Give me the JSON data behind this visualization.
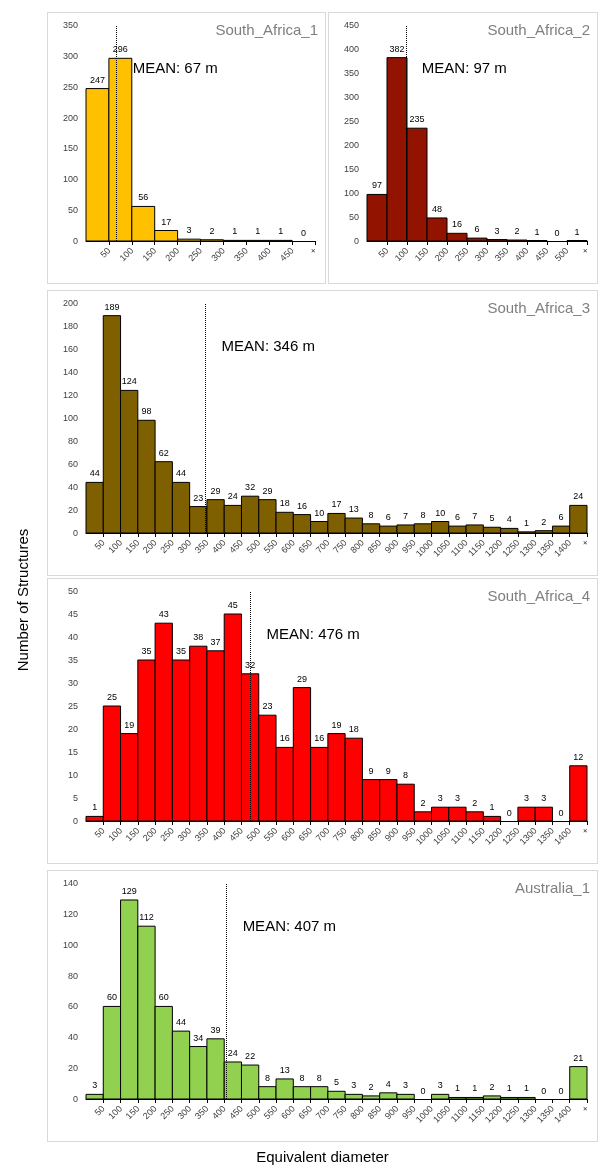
{
  "chart_data": [
    {
      "type": "histogram",
      "title": "South_Africa_1",
      "bins": [
        0,
        50,
        100,
        150,
        200,
        250,
        300,
        350,
        400,
        450,
        500
      ],
      "values": [
        247,
        296,
        56,
        17,
        3,
        2,
        1,
        1,
        1,
        0
      ],
      "color": "#ffc000",
      "xlim": [
        0,
        500
      ],
      "xticks": [
        50,
        100,
        150,
        200,
        250,
        300,
        350,
        400,
        450,
        {
          "value": 500,
          "label": "+"
        }
      ],
      "ylim": [
        0,
        350
      ],
      "yticks": [
        0,
        50,
        100,
        150,
        200,
        250,
        300,
        350
      ],
      "data_labels": true,
      "grid": false,
      "ref_lines": [
        {
          "axis": "x",
          "value": 67,
          "label": "MEAN: 67 m",
          "line_style": "dotted"
        }
      ]
    },
    {
      "type": "histogram",
      "title": "South_Africa_2",
      "bins": [
        0,
        50,
        100,
        150,
        200,
        250,
        300,
        350,
        400,
        450,
        500,
        550
      ],
      "values": [
        97,
        382,
        235,
        48,
        16,
        6,
        3,
        2,
        1,
        0,
        1
      ],
      "color": "#921300",
      "xlim": [
        0,
        550
      ],
      "xticks": [
        50,
        100,
        150,
        200,
        250,
        300,
        350,
        400,
        450,
        500,
        {
          "value": 550,
          "label": "+"
        }
      ],
      "ylim": [
        0,
        450
      ],
      "yticks": [
        0,
        50,
        100,
        150,
        200,
        250,
        300,
        350,
        400,
        450
      ],
      "data_labels": true,
      "grid": false,
      "ref_lines": [
        {
          "axis": "x",
          "value": 97,
          "label": "MEAN: 97 m",
          "line_style": "dotted"
        }
      ]
    },
    {
      "type": "histogram",
      "title": "South_Africa_3",
      "ylabel": "Number of Structures",
      "bins": [
        0,
        50,
        100,
        150,
        200,
        250,
        300,
        350,
        400,
        450,
        500,
        550,
        600,
        650,
        700,
        750,
        800,
        850,
        900,
        950,
        1000,
        1050,
        1100,
        1150,
        1200,
        1250,
        1300,
        1350,
        1400,
        1450
      ],
      "values": [
        44,
        189,
        124,
        98,
        62,
        44,
        23,
        29,
        24,
        32,
        29,
        18,
        16,
        10,
        17,
        13,
        8,
        6,
        7,
        8,
        10,
        6,
        7,
        5,
        4,
        1,
        2,
        6,
        24
      ],
      "color": "#7f6000",
      "xlim": [
        0,
        1450
      ],
      "xticks": [
        50,
        100,
        150,
        200,
        250,
        300,
        350,
        400,
        450,
        500,
        550,
        600,
        650,
        700,
        750,
        800,
        850,
        900,
        950,
        1000,
        1050,
        1100,
        1150,
        1200,
        1250,
        1300,
        1350,
        1400,
        {
          "value": 1450,
          "label": "+"
        }
      ],
      "ylim": [
        0,
        200
      ],
      "yticks": [
        0,
        20,
        40,
        60,
        80,
        100,
        120,
        140,
        160,
        180,
        200
      ],
      "data_labels": true,
      "grid": false,
      "ref_lines": [
        {
          "axis": "x",
          "value": 346,
          "label": "MEAN: 346 m",
          "line_style": "dotted"
        }
      ]
    },
    {
      "type": "histogram",
      "title": "South_Africa_4",
      "bins": [
        0,
        50,
        100,
        150,
        200,
        250,
        300,
        350,
        400,
        450,
        500,
        550,
        600,
        650,
        700,
        750,
        800,
        850,
        900,
        950,
        1000,
        1050,
        1100,
        1150,
        1200,
        1250,
        1300,
        1350,
        1400,
        1450
      ],
      "values": [
        1,
        25,
        19,
        35,
        43,
        35,
        38,
        37,
        45,
        32,
        23,
        16,
        29,
        16,
        19,
        18,
        9,
        9,
        8,
        2,
        3,
        3,
        2,
        1,
        0,
        3,
        3,
        0,
        12
      ],
      "color": "#ff0000",
      "xlim": [
        0,
        1450
      ],
      "xticks": [
        50,
        100,
        150,
        200,
        250,
        300,
        350,
        400,
        450,
        500,
        550,
        600,
        650,
        700,
        750,
        800,
        850,
        900,
        950,
        1000,
        1050,
        1100,
        1150,
        1200,
        1250,
        1300,
        1350,
        1400,
        {
          "value": 1450,
          "label": "+"
        }
      ],
      "ylim": [
        0,
        50
      ],
      "yticks": [
        0,
        5,
        10,
        15,
        20,
        25,
        30,
        35,
        40,
        45,
        50
      ],
      "data_labels": true,
      "grid": false,
      "ref_lines": [
        {
          "axis": "x",
          "value": 476,
          "label": "MEAN: 476 m",
          "line_style": "dotted"
        }
      ]
    },
    {
      "type": "histogram",
      "title": "Australia_1",
      "xlabel": "Equivalent diameter",
      "bins": [
        0,
        50,
        100,
        150,
        200,
        250,
        300,
        350,
        400,
        450,
        500,
        550,
        600,
        650,
        700,
        750,
        800,
        850,
        900,
        950,
        1000,
        1050,
        1100,
        1150,
        1200,
        1250,
        1300,
        1350,
        1400,
        1450
      ],
      "values": [
        3,
        60,
        129,
        112,
        60,
        44,
        34,
        39,
        24,
        22,
        8,
        13,
        8,
        8,
        5,
        3,
        2,
        4,
        3,
        0,
        3,
        1,
        1,
        2,
        1,
        1,
        0,
        0,
        21
      ],
      "color": "#92d050",
      "xlim": [
        0,
        1450
      ],
      "xticks": [
        50,
        100,
        150,
        200,
        250,
        300,
        350,
        400,
        450,
        500,
        550,
        600,
        650,
        700,
        750,
        800,
        850,
        900,
        950,
        1000,
        1050,
        1100,
        1150,
        1200,
        1250,
        1300,
        1350,
        1400,
        {
          "value": 1450,
          "label": "+"
        }
      ],
      "ylim": [
        0,
        140
      ],
      "yticks": [
        0,
        20,
        40,
        60,
        80,
        100,
        120,
        140
      ],
      "data_labels": true,
      "grid": false,
      "ref_lines": [
        {
          "axis": "x",
          "value": 407,
          "label": "MEAN: 407 m",
          "line_style": "dotted"
        }
      ]
    }
  ]
}
